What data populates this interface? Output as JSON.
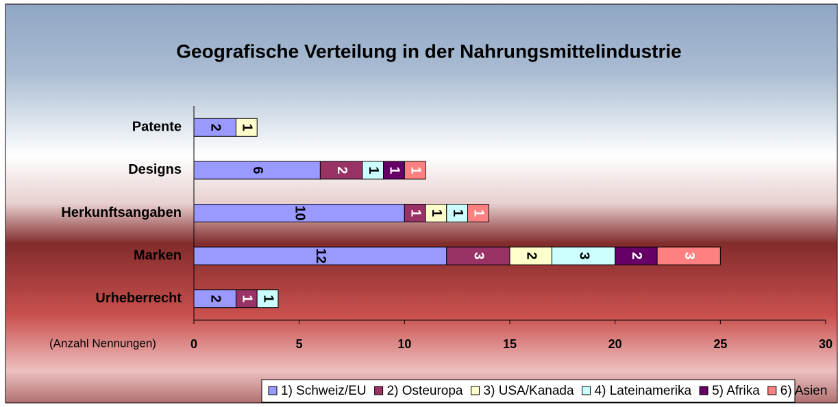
{
  "chart_data": {
    "type": "stacked-barh",
    "title": "Geografische Verteilung in der Nahrungsmittelindustrie",
    "xlabel": "(Anzahl Nennungen)",
    "categories": [
      "Patente",
      "Designs",
      "Herkunftsangaben",
      "Marken",
      "Urheberrecht"
    ],
    "series": [
      {
        "name": "1) Schweiz/EU",
        "color": "#9999ff",
        "values": [
          2,
          6,
          10,
          12,
          2
        ]
      },
      {
        "name": "2) Osteuropa",
        "color": "#993366",
        "values": [
          null,
          2,
          1,
          3,
          1
        ]
      },
      {
        "name": "3) USA/Kanada",
        "color": "#ffffcc",
        "values": [
          1,
          null,
          1,
          2,
          null
        ]
      },
      {
        "name": "4) Lateinamerika",
        "color": "#ccffff",
        "values": [
          null,
          1,
          1,
          3,
          1
        ]
      },
      {
        "name": "5) Afrika",
        "color": "#660066",
        "values": [
          null,
          1,
          null,
          2,
          null
        ]
      },
      {
        "name": "6) Asien",
        "color": "#ff8080",
        "values": [
          null,
          1,
          1,
          3,
          null
        ]
      }
    ],
    "xlim": [
      0,
      30
    ],
    "xticks": [
      0,
      5,
      10,
      15,
      20,
      25,
      30
    ],
    "legend": "bottom"
  }
}
